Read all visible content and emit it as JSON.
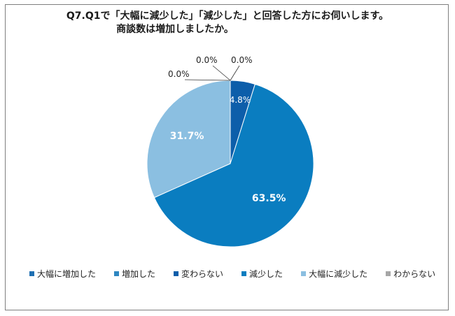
{
  "chart_data": {
    "type": "pie",
    "title_line1": "Q7.Q1で「大幅に減少した」「減少した」と回答した方にお伺いします。",
    "title_line2": "商談数は増加しましたか。",
    "slices": [
      {
        "label": "大幅に増加した",
        "value": 0.0,
        "display": "0.0%",
        "color": "#1F6FB2"
      },
      {
        "label": "増加した",
        "value": 0.0,
        "display": "0.0%",
        "color": "#2E86C1"
      },
      {
        "label": "変わらない",
        "value": 4.8,
        "display": "4.8%",
        "color": "#0D5EAA"
      },
      {
        "label": "減少した",
        "value": 63.5,
        "display": "63.5%",
        "color": "#0A7DC0"
      },
      {
        "label": "大幅に減少した",
        "value": 31.7,
        "display": "31.7%",
        "color": "#8BBFE1"
      },
      {
        "label": "わからない",
        "value": 0.0,
        "display": "0.0%",
        "color": "#A6A6A6"
      }
    ],
    "legend_position": "bottom"
  }
}
